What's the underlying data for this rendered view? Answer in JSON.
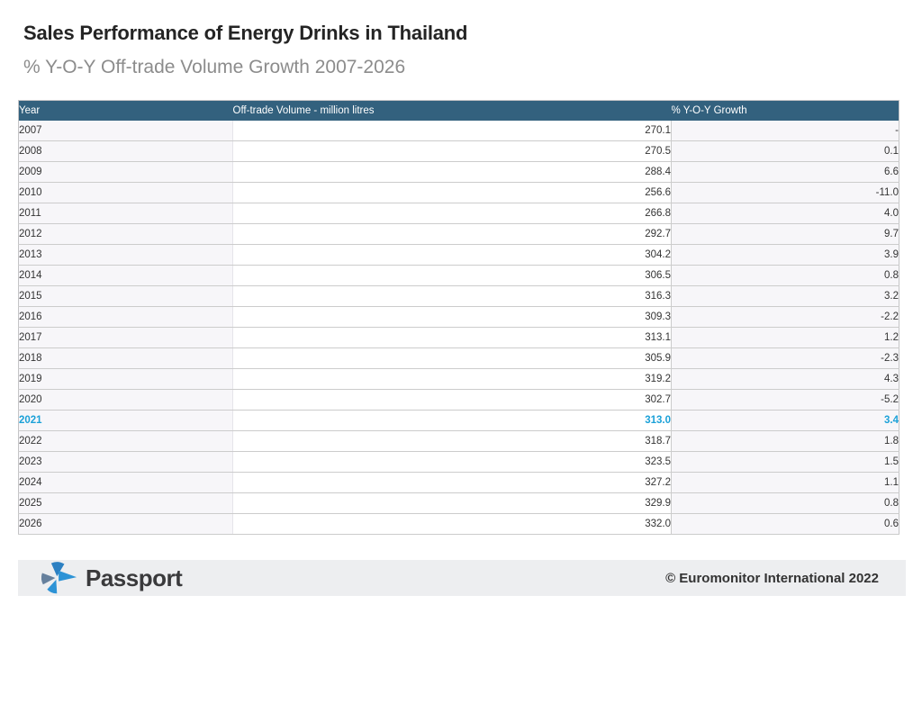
{
  "page": {
    "title": "Sales Performance of Energy Drinks in Thailand",
    "subtitle": "% Y-O-Y Off-trade Volume Growth 2007-2026"
  },
  "table": {
    "columns": [
      "Year",
      "Off-trade Volume - million litres",
      "% Y-O-Y Growth"
    ],
    "rows": [
      {
        "year": "2007",
        "volume": "270.1",
        "growth": "-",
        "highlight": false
      },
      {
        "year": "2008",
        "volume": "270.5",
        "growth": "0.1",
        "highlight": false
      },
      {
        "year": "2009",
        "volume": "288.4",
        "growth": "6.6",
        "highlight": false
      },
      {
        "year": "2010",
        "volume": "256.6",
        "growth": "-11.0",
        "highlight": false
      },
      {
        "year": "2011",
        "volume": "266.8",
        "growth": "4.0",
        "highlight": false
      },
      {
        "year": "2012",
        "volume": "292.7",
        "growth": "9.7",
        "highlight": false
      },
      {
        "year": "2013",
        "volume": "304.2",
        "growth": "3.9",
        "highlight": false
      },
      {
        "year": "2014",
        "volume": "306.5",
        "growth": "0.8",
        "highlight": false
      },
      {
        "year": "2015",
        "volume": "316.3",
        "growth": "3.2",
        "highlight": false
      },
      {
        "year": "2016",
        "volume": "309.3",
        "growth": "-2.2",
        "highlight": false
      },
      {
        "year": "2017",
        "volume": "313.1",
        "growth": "1.2",
        "highlight": false
      },
      {
        "year": "2018",
        "volume": "305.9",
        "growth": "-2.3",
        "highlight": false
      },
      {
        "year": "2019",
        "volume": "319.2",
        "growth": "4.3",
        "highlight": false
      },
      {
        "year": "2020",
        "volume": "302.7",
        "growth": "-5.2",
        "highlight": false
      },
      {
        "year": "2021",
        "volume": "313.0",
        "growth": "3.4",
        "highlight": true
      },
      {
        "year": "2022",
        "volume": "318.7",
        "growth": "1.8",
        "highlight": false
      },
      {
        "year": "2023",
        "volume": "323.5",
        "growth": "1.5",
        "highlight": false
      },
      {
        "year": "2024",
        "volume": "327.2",
        "growth": "1.1",
        "highlight": false
      },
      {
        "year": "2025",
        "volume": "329.9",
        "growth": "0.8",
        "highlight": false
      },
      {
        "year": "2026",
        "volume": "332.0",
        "growth": "0.6",
        "highlight": false
      }
    ]
  },
  "footer": {
    "brand": "Passport",
    "logo_icon": "passport-pinwheel-icon",
    "copyright": "© Euromonitor International 2022"
  },
  "colors": {
    "header_bg": "#33617e",
    "header_text": "#ffffff",
    "shaded_cell_bg": "#f7f6f9",
    "row_border": "#cccccc",
    "highlight_text": "#1ba1d8",
    "title_text": "#242424",
    "subtitle_text": "#8c8c8c",
    "footer_bg": "#edeef0",
    "logo_blue": "#2b8ccb",
    "logo_slate": "#66809d"
  },
  "chart_data": {
    "type": "table",
    "title": "Sales Performance of Energy Drinks in Thailand",
    "subtitle": "% Y-O-Y Off-trade Volume Growth 2007-2026",
    "columns": [
      "Year",
      "Off-trade Volume - million litres",
      "% Y-O-Y Growth"
    ],
    "years": [
      2007,
      2008,
      2009,
      2010,
      2011,
      2012,
      2013,
      2014,
      2015,
      2016,
      2017,
      2018,
      2019,
      2020,
      2021,
      2022,
      2023,
      2024,
      2025,
      2026
    ],
    "off_trade_volume_million_litres": [
      270.1,
      270.5,
      288.4,
      256.6,
      266.8,
      292.7,
      304.2,
      306.5,
      316.3,
      309.3,
      313.1,
      305.9,
      319.2,
      302.7,
      313.0,
      318.7,
      323.5,
      327.2,
      329.9,
      332.0
    ],
    "yoy_growth_percent": [
      null,
      0.1,
      6.6,
      -11.0,
      4.0,
      9.7,
      3.9,
      0.8,
      3.2,
      -2.2,
      1.2,
      -2.3,
      4.3,
      -5.2,
      3.4,
      1.8,
      1.5,
      1.1,
      0.8,
      0.6
    ],
    "highlighted_year": 2021
  }
}
